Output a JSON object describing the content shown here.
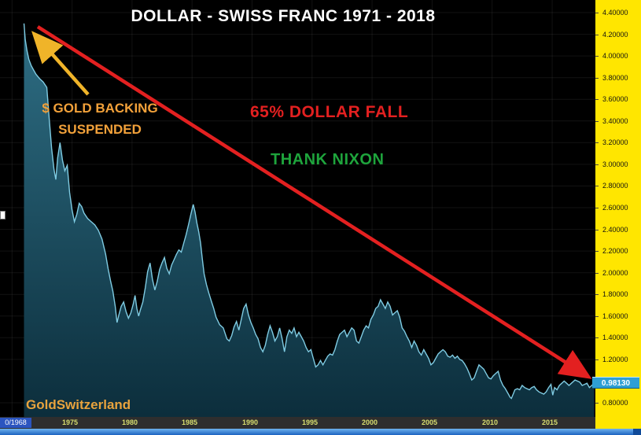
{
  "title": "DOLLAR - SWISS FRANC  1971 - 2018",
  "annotations": {
    "gold_line1": "$ GOLD BACKING",
    "gold_line2": "SUSPENDED",
    "red_text": "65% DOLLAR FALL",
    "green_text": "THANK NIXON",
    "watermark": "GoldSwitzerland"
  },
  "colors": {
    "background": "#000000",
    "axis_strip": "#FFE600",
    "line": "#7FCBE2",
    "fill_top": "#2E6E84",
    "fill_bottom": "#0C2E3C",
    "red": "#E32020",
    "gold_text": "#F2A13A",
    "gold_arrow": "#F0B429",
    "green": "#1EA43C",
    "badge_bg": "#2E9FD4",
    "year_label": "#D8DE6E",
    "watermark_gold": "#E8A33D"
  },
  "y_axis": {
    "labels": [
      "4.40000",
      "4.20000",
      "4.00000",
      "3.80000",
      "3.60000",
      "3.40000",
      "3.20000",
      "3.00000",
      "2.80000",
      "2.60000",
      "2.40000",
      "2.20000",
      "2.00000",
      "1.80000",
      "1.60000",
      "1.40000",
      "1.20000",
      "0.80000"
    ],
    "price_badge": "0.98130"
  },
  "x_axis": {
    "labels": [
      "1975",
      "1980",
      "1985",
      "1990",
      "1995",
      "2000",
      "2005",
      "2010",
      "2015"
    ],
    "left_label": "0/1968"
  },
  "chart_data": {
    "type": "area",
    "title": "DOLLAR - SWISS FRANC  1971 - 2018",
    "x_range": [
      1969.0,
      2018.6
    ],
    "y_range": [
      0.8,
      4.4
    ],
    "last_price": 0.9813,
    "grid": true,
    "series": [
      {
        "name": "Dollar - Swiss Franc",
        "points": [
          [
            1971.0,
            4.3
          ],
          [
            1971.1,
            4.15
          ],
          [
            1971.25,
            4.05
          ],
          [
            1971.4,
            3.97
          ],
          [
            1971.6,
            3.91
          ],
          [
            1971.8,
            3.87
          ],
          [
            1972.0,
            3.83
          ],
          [
            1972.3,
            3.79
          ],
          [
            1972.6,
            3.76
          ],
          [
            1972.9,
            3.71
          ],
          [
            1973.1,
            3.42
          ],
          [
            1973.3,
            3.15
          ],
          [
            1973.5,
            2.95
          ],
          [
            1973.65,
            2.86
          ],
          [
            1973.8,
            3.06
          ],
          [
            1974.0,
            3.2
          ],
          [
            1974.2,
            3.04
          ],
          [
            1974.4,
            2.94
          ],
          [
            1974.6,
            2.99
          ],
          [
            1974.8,
            2.74
          ],
          [
            1975.0,
            2.58
          ],
          [
            1975.2,
            2.47
          ],
          [
            1975.4,
            2.54
          ],
          [
            1975.6,
            2.64
          ],
          [
            1975.8,
            2.61
          ],
          [
            1976.0,
            2.55
          ],
          [
            1976.3,
            2.5
          ],
          [
            1976.6,
            2.47
          ],
          [
            1976.9,
            2.44
          ],
          [
            1977.2,
            2.39
          ],
          [
            1977.5,
            2.31
          ],
          [
            1977.8,
            2.17
          ],
          [
            1978.0,
            2.04
          ],
          [
            1978.2,
            1.93
          ],
          [
            1978.4,
            1.83
          ],
          [
            1978.6,
            1.69
          ],
          [
            1978.75,
            1.54
          ],
          [
            1978.9,
            1.61
          ],
          [
            1979.1,
            1.69
          ],
          [
            1979.3,
            1.73
          ],
          [
            1979.5,
            1.64
          ],
          [
            1979.7,
            1.58
          ],
          [
            1979.9,
            1.63
          ],
          [
            1980.1,
            1.71
          ],
          [
            1980.25,
            1.79
          ],
          [
            1980.4,
            1.67
          ],
          [
            1980.55,
            1.6
          ],
          [
            1980.7,
            1.66
          ],
          [
            1980.9,
            1.73
          ],
          [
            1981.1,
            1.86
          ],
          [
            1981.3,
            2.01
          ],
          [
            1981.5,
            2.09
          ],
          [
            1981.7,
            1.94
          ],
          [
            1981.9,
            1.84
          ],
          [
            1982.1,
            1.92
          ],
          [
            1982.3,
            2.03
          ],
          [
            1982.5,
            2.09
          ],
          [
            1982.7,
            2.14
          ],
          [
            1982.9,
            2.04
          ],
          [
            1983.1,
            1.99
          ],
          [
            1983.3,
            2.07
          ],
          [
            1983.5,
            2.12
          ],
          [
            1983.7,
            2.17
          ],
          [
            1983.9,
            2.21
          ],
          [
            1984.1,
            2.19
          ],
          [
            1984.3,
            2.27
          ],
          [
            1984.5,
            2.35
          ],
          [
            1984.7,
            2.44
          ],
          [
            1984.9,
            2.54
          ],
          [
            1985.1,
            2.63
          ],
          [
            1985.25,
            2.56
          ],
          [
            1985.4,
            2.46
          ],
          [
            1985.55,
            2.38
          ],
          [
            1985.7,
            2.28
          ],
          [
            1985.85,
            2.13
          ],
          [
            1986.0,
            1.99
          ],
          [
            1986.2,
            1.89
          ],
          [
            1986.4,
            1.81
          ],
          [
            1986.6,
            1.74
          ],
          [
            1986.8,
            1.67
          ],
          [
            1987.0,
            1.59
          ],
          [
            1987.3,
            1.52
          ],
          [
            1987.6,
            1.49
          ],
          [
            1987.9,
            1.39
          ],
          [
            1988.1,
            1.37
          ],
          [
            1988.3,
            1.42
          ],
          [
            1988.5,
            1.5
          ],
          [
            1988.7,
            1.55
          ],
          [
            1988.9,
            1.47
          ],
          [
            1989.1,
            1.57
          ],
          [
            1989.3,
            1.67
          ],
          [
            1989.5,
            1.71
          ],
          [
            1989.7,
            1.61
          ],
          [
            1989.9,
            1.54
          ],
          [
            1990.1,
            1.49
          ],
          [
            1990.3,
            1.43
          ],
          [
            1990.5,
            1.39
          ],
          [
            1990.7,
            1.31
          ],
          [
            1990.9,
            1.27
          ],
          [
            1991.1,
            1.33
          ],
          [
            1991.3,
            1.43
          ],
          [
            1991.5,
            1.51
          ],
          [
            1991.7,
            1.45
          ],
          [
            1991.9,
            1.37
          ],
          [
            1992.1,
            1.41
          ],
          [
            1992.3,
            1.49
          ],
          [
            1992.5,
            1.39
          ],
          [
            1992.7,
            1.27
          ],
          [
            1992.9,
            1.41
          ],
          [
            1993.1,
            1.47
          ],
          [
            1993.3,
            1.44
          ],
          [
            1993.5,
            1.49
          ],
          [
            1993.7,
            1.41
          ],
          [
            1993.9,
            1.45
          ],
          [
            1994.1,
            1.41
          ],
          [
            1994.3,
            1.37
          ],
          [
            1994.5,
            1.31
          ],
          [
            1994.7,
            1.27
          ],
          [
            1994.9,
            1.29
          ],
          [
            1995.1,
            1.21
          ],
          [
            1995.3,
            1.13
          ],
          [
            1995.5,
            1.15
          ],
          [
            1995.7,
            1.19
          ],
          [
            1995.9,
            1.15
          ],
          [
            1996.1,
            1.19
          ],
          [
            1996.3,
            1.23
          ],
          [
            1996.5,
            1.25
          ],
          [
            1996.7,
            1.24
          ],
          [
            1996.9,
            1.29
          ],
          [
            1997.1,
            1.37
          ],
          [
            1997.3,
            1.43
          ],
          [
            1997.5,
            1.45
          ],
          [
            1997.7,
            1.47
          ],
          [
            1997.9,
            1.41
          ],
          [
            1998.1,
            1.45
          ],
          [
            1998.3,
            1.49
          ],
          [
            1998.5,
            1.47
          ],
          [
            1998.7,
            1.37
          ],
          [
            1998.9,
            1.35
          ],
          [
            1999.1,
            1.41
          ],
          [
            1999.3,
            1.47
          ],
          [
            1999.5,
            1.51
          ],
          [
            1999.7,
            1.49
          ],
          [
            1999.9,
            1.57
          ],
          [
            2000.1,
            1.61
          ],
          [
            2000.3,
            1.67
          ],
          [
            2000.5,
            1.69
          ],
          [
            2000.7,
            1.75
          ],
          [
            2000.9,
            1.71
          ],
          [
            2001.1,
            1.67
          ],
          [
            2001.3,
            1.73
          ],
          [
            2001.5,
            1.69
          ],
          [
            2001.7,
            1.61
          ],
          [
            2001.9,
            1.63
          ],
          [
            2002.1,
            1.65
          ],
          [
            2002.3,
            1.59
          ],
          [
            2002.5,
            1.49
          ],
          [
            2002.7,
            1.46
          ],
          [
            2002.9,
            1.41
          ],
          [
            2003.1,
            1.37
          ],
          [
            2003.3,
            1.31
          ],
          [
            2003.5,
            1.37
          ],
          [
            2003.7,
            1.33
          ],
          [
            2003.9,
            1.27
          ],
          [
            2004.1,
            1.24
          ],
          [
            2004.3,
            1.29
          ],
          [
            2004.5,
            1.25
          ],
          [
            2004.7,
            1.21
          ],
          [
            2004.9,
            1.15
          ],
          [
            2005.1,
            1.17
          ],
          [
            2005.3,
            1.21
          ],
          [
            2005.5,
            1.25
          ],
          [
            2005.7,
            1.27
          ],
          [
            2005.9,
            1.29
          ],
          [
            2006.1,
            1.27
          ],
          [
            2006.3,
            1.23
          ],
          [
            2006.5,
            1.22
          ],
          [
            2006.7,
            1.24
          ],
          [
            2006.9,
            1.21
          ],
          [
            2007.1,
            1.23
          ],
          [
            2007.3,
            1.2
          ],
          [
            2007.5,
            1.19
          ],
          [
            2007.7,
            1.16
          ],
          [
            2007.9,
            1.12
          ],
          [
            2008.1,
            1.07
          ],
          [
            2008.3,
            1.01
          ],
          [
            2008.5,
            1.03
          ],
          [
            2008.7,
            1.09
          ],
          [
            2008.9,
            1.15
          ],
          [
            2009.1,
            1.13
          ],
          [
            2009.3,
            1.11
          ],
          [
            2009.5,
            1.07
          ],
          [
            2009.7,
            1.03
          ],
          [
            2009.9,
            1.02
          ],
          [
            2010.1,
            1.05
          ],
          [
            2010.3,
            1.07
          ],
          [
            2010.5,
            1.09
          ],
          [
            2010.7,
            1.01
          ],
          [
            2010.9,
            0.96
          ],
          [
            2011.1,
            0.93
          ],
          [
            2011.3,
            0.89
          ],
          [
            2011.5,
            0.85
          ],
          [
            2011.6,
            0.84
          ],
          [
            2011.75,
            0.88
          ],
          [
            2011.9,
            0.92
          ],
          [
            2012.1,
            0.93
          ],
          [
            2012.3,
            0.92
          ],
          [
            2012.5,
            0.96
          ],
          [
            2012.7,
            0.94
          ],
          [
            2012.9,
            0.93
          ],
          [
            2013.1,
            0.92
          ],
          [
            2013.3,
            0.94
          ],
          [
            2013.5,
            0.95
          ],
          [
            2013.7,
            0.92
          ],
          [
            2013.9,
            0.9
          ],
          [
            2014.1,
            0.89
          ],
          [
            2014.3,
            0.88
          ],
          [
            2014.5,
            0.9
          ],
          [
            2014.7,
            0.94
          ],
          [
            2014.9,
            0.97
          ],
          [
            2015.05,
            0.87
          ],
          [
            2015.2,
            0.94
          ],
          [
            2015.4,
            0.92
          ],
          [
            2015.6,
            0.96
          ],
          [
            2015.8,
            0.98
          ],
          [
            2016.0,
            1.0
          ],
          [
            2016.2,
            0.98
          ],
          [
            2016.4,
            0.96
          ],
          [
            2016.6,
            0.98
          ],
          [
            2016.9,
            1.01
          ],
          [
            2017.1,
            1.0
          ],
          [
            2017.3,
            0.99
          ],
          [
            2017.5,
            0.96
          ],
          [
            2017.7,
            0.97
          ],
          [
            2017.9,
            0.98
          ],
          [
            2018.1,
            0.94
          ],
          [
            2018.3,
            0.96
          ],
          [
            2018.5,
            0.9813
          ]
        ]
      }
    ]
  }
}
